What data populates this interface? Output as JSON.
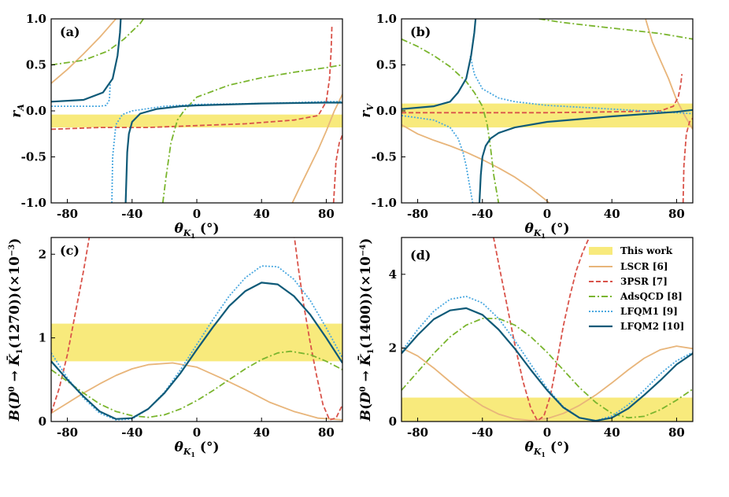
{
  "figure": {
    "x_axis_label": "θ_K1 (°)",
    "legend": [
      "This work",
      "LSCR [6]",
      "3PSR [7]",
      "AdsQCD [8]",
      "LFQM1 [9]",
      "LFQM2 [10]"
    ]
  },
  "colors": {
    "band": "#f8ea7c",
    "LSCR": "#e8b57a",
    "3PSR": "#d9534a",
    "AdsQCD": "#7ab52e",
    "LFQM1": "#4aa8e0",
    "LFQM2": "#0f5a78"
  },
  "chart_data": [
    {
      "type": "line",
      "panel": "(a)",
      "xlabel": "θ_K1 (°)",
      "ylabel": "r_A",
      "xlim": [
        -90,
        90
      ],
      "ylim": [
        -1.0,
        1.0
      ],
      "xticks": [
        "-80",
        "-40",
        "0",
        "40",
        "80"
      ],
      "xtick_values": [
        -80,
        -40,
        0,
        40,
        80
      ],
      "yticks": [
        "1.0",
        "0.5",
        "0.0",
        "-0.5",
        "-1.0"
      ],
      "ytick_values": [
        1.0,
        0.5,
        0.0,
        -0.5,
        -1.0
      ],
      "band": [
        -0.18,
        -0.04
      ],
      "series": [
        {
          "name": "LSCR [6]",
          "key": "LSCR",
          "x": [
            -90,
            -80,
            -70,
            -60,
            -50,
            -40,
            -31,
            null,
            59,
            65,
            70,
            75,
            80,
            85,
            90
          ],
          "y": [
            0.3,
            0.45,
            0.62,
            0.8,
            1.0,
            1.25,
            1.5,
            null,
            -1.0,
            -0.78,
            -0.6,
            -0.42,
            -0.22,
            0.0,
            0.18
          ]
        },
        {
          "name": "3PSR [7]",
          "key": "3PSR",
          "x": [
            -90,
            -60,
            -30,
            0,
            30,
            60,
            75,
            80,
            82,
            83,
            83.5,
            null,
            84.5,
            86,
            88,
            90
          ],
          "y": [
            -0.2,
            -0.18,
            -0.18,
            -0.16,
            -0.14,
            -0.1,
            -0.05,
            0.1,
            0.35,
            0.65,
            0.92,
            null,
            -1.0,
            -0.55,
            -0.35,
            -0.26
          ]
        },
        {
          "name": "AdsQCD [8]",
          "key": "AdsQCD",
          "x": [
            -90,
            -70,
            -55,
            -45,
            -35,
            -33,
            null,
            -21,
            -19,
            -16,
            -12,
            -8,
            0,
            20,
            40,
            60,
            80,
            90
          ],
          "y": [
            0.5,
            0.55,
            0.65,
            0.78,
            0.95,
            1.0,
            null,
            -1.0,
            -0.72,
            -0.35,
            -0.1,
            0.0,
            0.15,
            0.28,
            0.36,
            0.42,
            0.47,
            0.5
          ]
        },
        {
          "name": "LFQM1 [9]",
          "key": "LFQM1",
          "x": [
            -90,
            -70,
            -60,
            -56,
            -54,
            -53.5,
            null,
            -52.5,
            -52,
            -50,
            -46,
            -40,
            -20,
            0,
            40,
            80,
            90
          ],
          "y": [
            0.05,
            0.05,
            0.05,
            0.06,
            0.12,
            0.3,
            null,
            -1.0,
            -0.5,
            -0.15,
            -0.04,
            0.0,
            0.05,
            0.07,
            0.08,
            0.1,
            0.1
          ]
        },
        {
          "name": "LFQM2 [10]",
          "key": "LFQM2",
          "x": [
            -90,
            -70,
            -58,
            -52,
            -49,
            -47.5,
            -47,
            null,
            -44,
            -43,
            -42,
            -40,
            -35,
            -25,
            -10,
            0,
            40,
            80,
            90
          ],
          "y": [
            0.1,
            0.12,
            0.2,
            0.35,
            0.6,
            0.85,
            1.0,
            null,
            -1.0,
            -0.45,
            -0.25,
            -0.12,
            -0.03,
            0.02,
            0.05,
            0.06,
            0.08,
            0.09,
            0.09
          ]
        }
      ]
    },
    {
      "type": "line",
      "panel": "(b)",
      "xlabel": "θ_K1 (°)",
      "ylabel": "r_V",
      "xlim": [
        -90,
        90
      ],
      "ylim": [
        -1.0,
        1.0
      ],
      "xticks": [
        "-80",
        "-40",
        "0",
        "40",
        "80"
      ],
      "xtick_values": [
        -80,
        -40,
        0,
        40,
        80
      ],
      "yticks": [
        "1.0",
        "0.5",
        "0.0",
        "-0.5",
        "-1.0"
      ],
      "ytick_values": [
        1.0,
        0.5,
        0.0,
        -0.5,
        -1.0
      ],
      "band": [
        -0.18,
        0.08
      ],
      "series": [
        {
          "name": "LSCR [6]",
          "key": "LSCR",
          "x": [
            -90,
            -80,
            -70,
            -60,
            -50,
            -40,
            -30,
            -20,
            -10,
            0,
            4,
            null,
            60,
            65,
            70,
            75,
            80,
            85,
            90
          ],
          "y": [
            -0.15,
            -0.25,
            -0.32,
            -0.38,
            -0.45,
            -0.53,
            -0.62,
            -0.72,
            -0.84,
            -0.98,
            -1.05,
            null,
            1.05,
            0.75,
            0.55,
            0.35,
            0.12,
            -0.05,
            -0.2
          ]
        },
        {
          "name": "3PSR [7]",
          "key": "3PSR",
          "x": [
            -90,
            -50,
            0,
            40,
            70,
            78,
            81,
            82.5,
            83.3,
            null,
            84,
            84.5,
            86,
            88,
            90
          ],
          "y": [
            -0.02,
            -0.02,
            -0.02,
            -0.01,
            0.0,
            0.05,
            0.15,
            0.28,
            0.4,
            null,
            -1.0,
            -0.6,
            -0.25,
            -0.12,
            -0.08
          ]
        },
        {
          "name": "AdsQCD [8]",
          "key": "AdsQCD",
          "x": [
            -90,
            -80,
            -70,
            -60,
            -50,
            -45,
            -40,
            -37,
            -35,
            -33,
            -30,
            null,
            -5,
            10,
            30,
            50,
            70,
            90
          ],
          "y": [
            0.78,
            0.7,
            0.6,
            0.48,
            0.32,
            0.2,
            0.05,
            -0.15,
            -0.4,
            -0.7,
            -1.0,
            null,
            1.0,
            0.96,
            0.92,
            0.88,
            0.84,
            0.78
          ]
        },
        {
          "name": "LFQM1 [9]",
          "key": "LFQM1",
          "x": [
            -90,
            -70,
            -60,
            -55,
            -52,
            -50,
            -48,
            -46,
            -44.5,
            null,
            -47.5,
            -45,
            -40,
            -30,
            -20,
            0,
            20,
            40,
            60,
            80,
            90
          ],
          "y": [
            -0.05,
            -0.1,
            -0.18,
            -0.3,
            -0.45,
            -0.6,
            -0.8,
            -1.0,
            -1.1,
            null,
            0.6,
            0.4,
            0.24,
            0.14,
            0.1,
            0.06,
            0.04,
            0.02,
            0.0,
            -0.02,
            -0.03
          ]
        },
        {
          "name": "LFQM2 [10]",
          "key": "LFQM2",
          "x": [
            -90,
            -70,
            -60,
            -55,
            -50,
            -47,
            -45,
            -44,
            null,
            -42,
            -41,
            -40,
            -38,
            -35,
            -30,
            -20,
            0,
            40,
            80,
            90
          ],
          "y": [
            0.02,
            0.05,
            0.1,
            0.2,
            0.35,
            0.6,
            0.85,
            1.05,
            null,
            -1.05,
            -0.7,
            -0.5,
            -0.38,
            -0.3,
            -0.24,
            -0.18,
            -0.12,
            -0.06,
            -0.01,
            0.01
          ]
        }
      ]
    },
    {
      "type": "line",
      "panel": "(c)",
      "xlabel": "θ_K1 (°)",
      "ylabel": "B(D⁰ → K̄1(1270))(×10⁻³)",
      "xlim": [
        -90,
        90
      ],
      "ylim": [
        0,
        2.2
      ],
      "xticks": [
        "-80",
        "-40",
        "0",
        "40",
        "80"
      ],
      "xtick_values": [
        -80,
        -40,
        0,
        40,
        80
      ],
      "yticks": [
        "2",
        "1",
        "0"
      ],
      "ytick_values": [
        2,
        1,
        0
      ],
      "band": [
        0.72,
        1.17
      ],
      "series": [
        {
          "name": "LSCR [6]",
          "key": "LSCR",
          "x": [
            -90,
            -80,
            -70,
            -60,
            -50,
            -40,
            -30,
            -15,
            0,
            15,
            30,
            45,
            60,
            75,
            90
          ],
          "y": [
            0.1,
            0.22,
            0.34,
            0.45,
            0.55,
            0.63,
            0.68,
            0.7,
            0.65,
            0.52,
            0.38,
            0.23,
            0.12,
            0.04,
            0.02
          ]
        },
        {
          "name": "3PSR [7]",
          "key": "3PSR",
          "x": [
            -90,
            -85,
            -80,
            -75,
            -70,
            -66,
            null,
            60,
            63,
            66,
            70,
            74,
            78,
            82,
            86,
            90
          ],
          "y": [
            0.1,
            0.4,
            0.8,
            1.3,
            1.8,
            2.25,
            null,
            2.25,
            1.8,
            1.4,
            0.95,
            0.55,
            0.2,
            0.02,
            0.04,
            0.2
          ]
        },
        {
          "name": "AdsQCD [8]",
          "key": "AdsQCD",
          "x": [
            -90,
            -80,
            -70,
            -60,
            -50,
            -40,
            -30,
            -20,
            -10,
            0,
            10,
            20,
            30,
            40,
            50,
            58,
            70,
            80,
            90
          ],
          "y": [
            0.62,
            0.48,
            0.34,
            0.21,
            0.12,
            0.07,
            0.05,
            0.08,
            0.15,
            0.25,
            0.37,
            0.5,
            0.63,
            0.74,
            0.82,
            0.84,
            0.8,
            0.72,
            0.62
          ]
        },
        {
          "name": "LFQM1 [9]",
          "key": "LFQM1",
          "x": [
            -90,
            -80,
            -70,
            -60,
            -50,
            -40,
            -30,
            -20,
            -10,
            0,
            10,
            20,
            30,
            40,
            50,
            60,
            70,
            80,
            90
          ],
          "y": [
            0.82,
            0.52,
            0.28,
            0.1,
            0.02,
            0.03,
            0.15,
            0.35,
            0.62,
            0.92,
            1.22,
            1.5,
            1.72,
            1.86,
            1.85,
            1.7,
            1.45,
            1.12,
            0.76
          ]
        },
        {
          "name": "LFQM2 [10]",
          "key": "LFQM2",
          "x": [
            -90,
            -80,
            -70,
            -60,
            -50,
            -40,
            -30,
            -20,
            -10,
            0,
            10,
            20,
            30,
            40,
            50,
            60,
            70,
            80,
            90
          ],
          "y": [
            0.72,
            0.5,
            0.3,
            0.12,
            0.03,
            0.04,
            0.15,
            0.34,
            0.58,
            0.86,
            1.13,
            1.38,
            1.56,
            1.66,
            1.64,
            1.5,
            1.28,
            1.0,
            0.7
          ]
        }
      ]
    },
    {
      "type": "line",
      "panel": "(d)",
      "xlabel": "θ_K1 (°)",
      "ylabel": "B(D⁰ → K̄1(1400))(×10⁻⁴)",
      "xlim": [
        -90,
        90
      ],
      "ylim": [
        0,
        5
      ],
      "xticks": [
        "-80",
        "-40",
        "0",
        "40",
        "80"
      ],
      "xtick_values": [
        -80,
        -40,
        0,
        40,
        80
      ],
      "yticks": [
        "4",
        "2",
        "0"
      ],
      "ytick_values": [
        4,
        2,
        0
      ],
      "band": [
        0,
        0.65
      ],
      "series": [
        {
          "name": "LSCR [6]",
          "key": "LSCR",
          "x": [
            -90,
            -80,
            -70,
            -60,
            -50,
            -40,
            -30,
            -20,
            -10,
            0,
            10,
            20,
            30,
            40,
            50,
            60,
            70,
            80,
            90
          ],
          "y": [
            2.0,
            1.78,
            1.45,
            1.08,
            0.72,
            0.42,
            0.2,
            0.07,
            0.03,
            0.08,
            0.22,
            0.44,
            0.72,
            1.05,
            1.4,
            1.72,
            1.95,
            2.05,
            1.98
          ]
        },
        {
          "name": "3PSR [7]",
          "key": "3PSR",
          "x": [
            -34,
            -30,
            -25,
            -20,
            -15,
            -10,
            -6,
            -2,
            2,
            6,
            10,
            14,
            18,
            22,
            26,
            29
          ],
          "y": [
            5.2,
            4.3,
            3.2,
            2.1,
            1.1,
            0.35,
            0.02,
            0.15,
            0.7,
            1.6,
            2.6,
            3.4,
            4.1,
            4.6,
            5.0,
            5.2
          ]
        },
        {
          "name": "AdsQCD [8]",
          "key": "AdsQCD",
          "x": [
            -90,
            -80,
            -70,
            -60,
            -50,
            -40,
            -30,
            -20,
            -10,
            0,
            10,
            20,
            30,
            40,
            50,
            60,
            70,
            80,
            90
          ],
          "y": [
            0.85,
            1.35,
            1.85,
            2.3,
            2.62,
            2.8,
            2.8,
            2.62,
            2.3,
            1.88,
            1.4,
            0.92,
            0.52,
            0.22,
            0.1,
            0.14,
            0.32,
            0.58,
            0.88
          ]
        },
        {
          "name": "LFQM1 [9]",
          "key": "LFQM1",
          "x": [
            -90,
            -80,
            -70,
            -60,
            -50,
            -40,
            -30,
            -20,
            -10,
            0,
            10,
            20,
            30,
            40,
            50,
            60,
            70,
            80,
            90
          ],
          "y": [
            1.9,
            2.5,
            3.0,
            3.32,
            3.4,
            3.22,
            2.8,
            2.2,
            1.55,
            0.9,
            0.4,
            0.1,
            0.02,
            0.15,
            0.45,
            0.85,
            1.3,
            1.65,
            1.88
          ]
        },
        {
          "name": "LFQM2 [10]",
          "key": "LFQM2",
          "x": [
            -90,
            -80,
            -70,
            -60,
            -50,
            -40,
            -30,
            -20,
            -10,
            0,
            10,
            20,
            30,
            40,
            50,
            60,
            70,
            80,
            90
          ],
          "y": [
            1.85,
            2.35,
            2.78,
            3.02,
            3.08,
            2.9,
            2.5,
            1.98,
            1.4,
            0.85,
            0.38,
            0.1,
            0.02,
            0.1,
            0.35,
            0.72,
            1.12,
            1.55,
            1.85
          ]
        }
      ]
    }
  ]
}
